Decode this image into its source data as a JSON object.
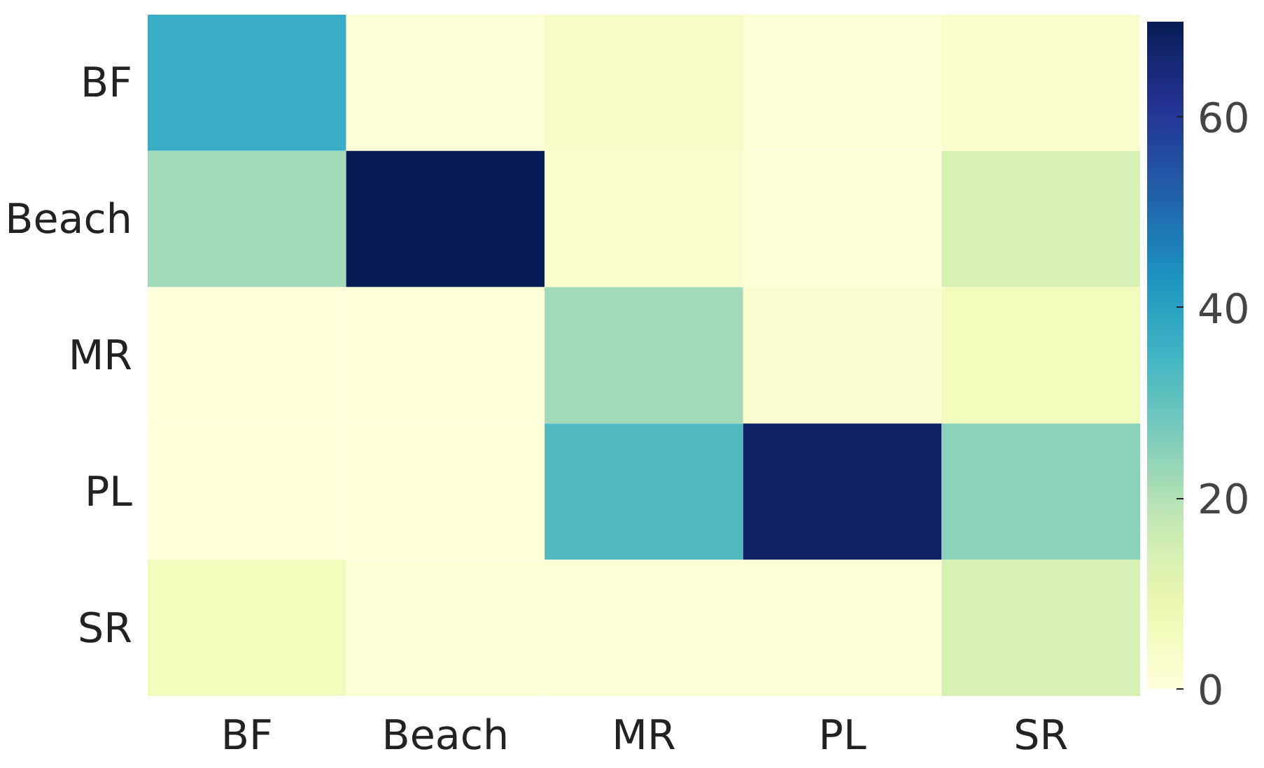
{
  "chart_data": {
    "type": "heatmap",
    "categories": [
      "BF",
      "Beach",
      "MR",
      "PL",
      "SR"
    ],
    "y_categories": [
      "BF",
      "Beach",
      "MR",
      "PL",
      "SR"
    ],
    "cells": [
      [
        37,
        1,
        4,
        1,
        3
      ],
      [
        22,
        70,
        3,
        1,
        14
      ],
      [
        0,
        0,
        22,
        2,
        6
      ],
      [
        0,
        0,
        33,
        68,
        25
      ],
      [
        6,
        1,
        1,
        1,
        14
      ]
    ],
    "clim": [
      0,
      70
    ],
    "cticks": [
      0,
      20,
      40,
      60
    ]
  }
}
